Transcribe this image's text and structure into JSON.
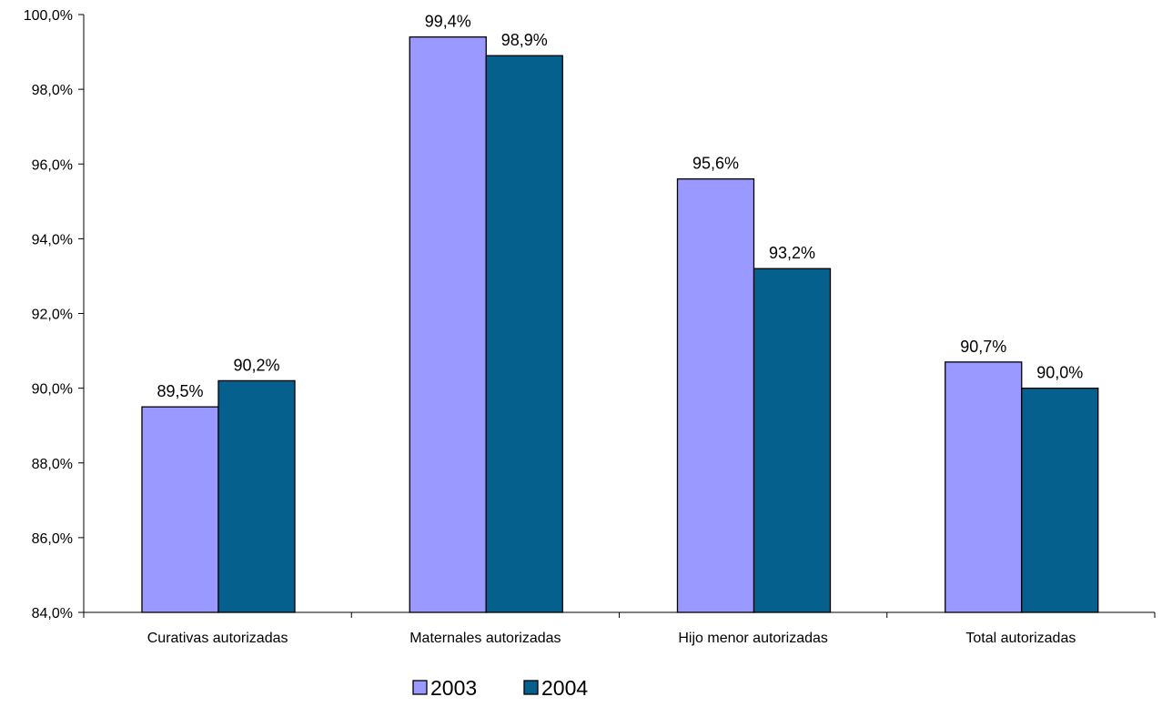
{
  "chart_data": {
    "type": "bar",
    "title": "",
    "xlabel": "",
    "ylabel": "",
    "categories": [
      "Curativas autorizadas",
      "Maternales autorizadas",
      "Hijo menor autorizadas",
      "Total autorizadas"
    ],
    "series": [
      {
        "name": "2003",
        "values": [
          89.5,
          99.4,
          95.6,
          90.7
        ],
        "labels": [
          "89,5%",
          "99,4%",
          "95,6%",
          "90,7%"
        ],
        "color": "#9999ff"
      },
      {
        "name": "2004",
        "values": [
          90.2,
          98.9,
          93.2,
          90.0
        ],
        "labels": [
          "90,2%",
          "98,9%",
          "93,2%",
          "90,0%"
        ],
        "color": "#06608e"
      }
    ],
    "ylim": [
      84,
      100
    ],
    "yticks": [
      {
        "value": 84,
        "label": "84,0%"
      },
      {
        "value": 86,
        "label": "86,0%"
      },
      {
        "value": 88,
        "label": "88,0%"
      },
      {
        "value": 90,
        "label": "90,0%"
      },
      {
        "value": 92,
        "label": "92,0%"
      },
      {
        "value": 94,
        "label": "94,0%"
      },
      {
        "value": 96,
        "label": "96,0%"
      },
      {
        "value": 98,
        "label": "98,0%"
      },
      {
        "value": 100,
        "label": "100,0%"
      }
    ],
    "grid": false,
    "legend_position": "bottom"
  }
}
